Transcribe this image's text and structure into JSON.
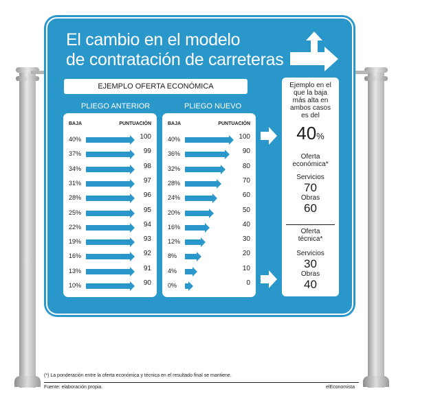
{
  "title": {
    "line1": "El cambio en el modelo",
    "line2": "de contratación de carreteras"
  },
  "banner": "EJEMPLO OFERTA ECONÓMICA",
  "pliego_anterior": {
    "heading": "PLIEGO ANTERIOR",
    "col_baja": "BAJA",
    "col_puntuacion": "PUNTUACIÓN",
    "rows": [
      {
        "baja": "40%",
        "puntuacion": "100",
        "level": 1.0
      },
      {
        "baja": "37%",
        "puntuacion": "99",
        "level": 1.0
      },
      {
        "baja": "34%",
        "puntuacion": "98",
        "level": 1.0
      },
      {
        "baja": "31%",
        "puntuacion": "97",
        "level": 1.0
      },
      {
        "baja": "28%",
        "puntuacion": "96",
        "level": 1.0
      },
      {
        "baja": "25%",
        "puntuacion": "95",
        "level": 1.0
      },
      {
        "baja": "22%",
        "puntuacion": "94",
        "level": 1.0
      },
      {
        "baja": "19%",
        "puntuacion": "93",
        "level": 1.0
      },
      {
        "baja": "16%",
        "puntuacion": "92",
        "level": 1.0
      },
      {
        "baja": "13%",
        "puntuacion": "91",
        "level": 1.0
      },
      {
        "baja": "10%",
        "puntuacion": "90",
        "level": 1.0
      }
    ]
  },
  "pliego_nuevo": {
    "heading": "PLIEGO NUEVO",
    "col_baja": "BAJA",
    "col_puntuacion": "PUNTUACIÓN",
    "rows": [
      {
        "baja": "40%",
        "puntuacion": "100",
        "level": 1.0
      },
      {
        "baja": "36%",
        "puntuacion": "90",
        "level": 0.9
      },
      {
        "baja": "32%",
        "puntuacion": "80",
        "level": 0.8
      },
      {
        "baja": "28%",
        "puntuacion": "70",
        "level": 0.7
      },
      {
        "baja": "24%",
        "puntuacion": "60",
        "level": 0.6
      },
      {
        "baja": "20%",
        "puntuacion": "50",
        "level": 0.5
      },
      {
        "baja": "16%",
        "puntuacion": "40",
        "level": 0.4
      },
      {
        "baja": "12%",
        "puntuacion": "30",
        "level": 0.3
      },
      {
        "baja": "8%",
        "puntuacion": "20",
        "level": 0.2
      },
      {
        "baja": "4%",
        "puntuacion": "10",
        "level": 0.1
      },
      {
        "baja": "0%",
        "puntuacion": "0",
        "level": 0.0
      }
    ]
  },
  "side": {
    "intro": [
      "Ejemplo en el",
      "que la baja",
      "más alta en",
      "ambos casos",
      "es del"
    ],
    "max_baja": "40",
    "max_baja_unit": "%",
    "economica_label": [
      "Oferta",
      "económica*"
    ],
    "economica_servicios_label": "Servicios",
    "economica_servicios_value": "70",
    "economica_obras_label": "Obras",
    "economica_obras_value": "60",
    "tecnica_label": [
      "Oferta",
      "técnica*"
    ],
    "tecnica_servicios_label": "Servicios",
    "tecnica_servicios_value": "30",
    "tecnica_obras_label": "Obras",
    "tecnica_obras_value": "40"
  },
  "footnote": "(*) La ponderación entre la oferta económica y técnica en el resultado final se mantiene.",
  "source": "Fuente: elaboración propia.",
  "brand": "elEconomista",
  "colors": {
    "sign": "#2a97cb",
    "arrow": "#2a97cb",
    "text": "#1a1a1a"
  }
}
